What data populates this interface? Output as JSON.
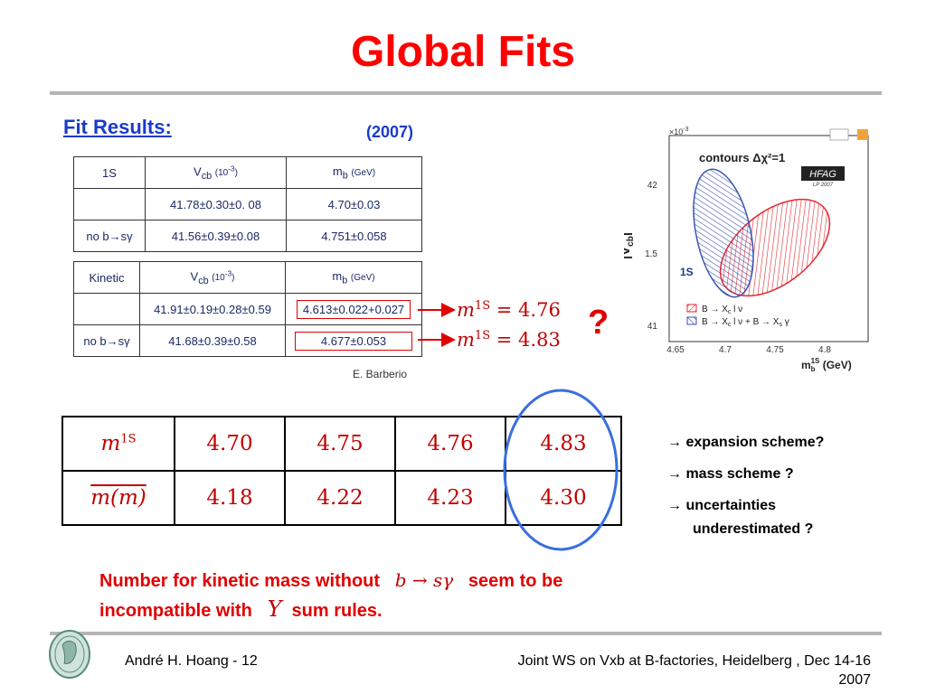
{
  "slide": {
    "title": "Global Fits",
    "subtitle": "Fit Results:",
    "year": "(2007)"
  },
  "table_1s": {
    "scheme": "1S",
    "vcb_header": "V",
    "vcb_sub": "cb",
    "vcb_unit": "(10",
    "vcb_exp": "-3",
    "vcb_close": ")",
    "mb_header": "m",
    "mb_sub": "b",
    "mb_unit": "(GeV)",
    "rows": [
      {
        "label": "",
        "vcb": "41.78±0.30±0. 08",
        "mb": "4.70±0.03"
      },
      {
        "label": "no b→sγ",
        "vcb": "41.56±0.39±0.08",
        "mb": "4.751±0.058"
      }
    ]
  },
  "table_kinetic": {
    "scheme": "Kinetic",
    "vcb_header": "V",
    "vcb_sub": "cb",
    "vcb_unit": "(10",
    "vcb_exp": "-3",
    "vcb_close": ")",
    "mb_header": "m",
    "mb_sub": "b",
    "mb_unit": "(GeV)",
    "rows": [
      {
        "label": "",
        "vcb": "41.91±0.19±0.28±0.59",
        "mb": "4.613±0.022+0.027"
      },
      {
        "label": "no b→sγ",
        "vcb": "41.68±0.39±0.58",
        "mb": "4.677±0.053"
      }
    ]
  },
  "credit": "E. Barberio",
  "arrow_labels": [
    {
      "lhs": "m",
      "sup": "1S",
      "rhs": " = 4.76"
    },
    {
      "lhs": "m",
      "sup": "1S",
      "rhs": " = 4.83"
    }
  ],
  "question_mark": "?",
  "mass_table": {
    "row1": {
      "label": "m",
      "label_sup": "1S",
      "values": [
        "4.70",
        "4.75",
        "4.76",
        "4.83"
      ]
    },
    "row2": {
      "label": "m(m)",
      "values": [
        "4.18",
        "4.22",
        "4.23",
        "4.30"
      ]
    }
  },
  "contour_plot": {
    "exp_label": "×10",
    "exp_sup": "-3",
    "title": "contours Δχ²=1",
    "badge": "HFAG",
    "badge_sub": "LP 2007",
    "scheme_label": "1S",
    "ylabel": "|V",
    "ylabel_sub": "cb",
    "ylabel_close": "|",
    "yticks": [
      "42",
      "1.5",
      "41"
    ],
    "xticks": [
      "4.65",
      "4.7",
      "4.75",
      "4.8"
    ],
    "xlabel": "m",
    "xlabel_sub": "b",
    "xlabel_sup": "1S",
    "xlabel_unit": " (GeV)",
    "legend": [
      "B → X",
      "c",
      " l ν",
      "B → X",
      "c",
      " l ν + B → X",
      "s",
      " γ"
    ],
    "colors": {
      "red": "#e8262e",
      "blue": "#3a56b0"
    }
  },
  "notes": [
    "→ expansion scheme?",
    "→ mass scheme ?",
    "→ uncertainties",
    "underestimated ?"
  ],
  "conclusion": {
    "part1": "Number for kinetic mass  without",
    "math1": "b → sγ",
    "part2": "seem to be",
    "part3": "incompatible with",
    "math2": "Υ",
    "part4": "sum rules."
  },
  "footer": {
    "author": "André H. Hoang  - 12",
    "event": "Joint WS on Vxb at B-factories, Heidelberg , Dec 14-16",
    "year": "2007"
  },
  "colors": {
    "title": "#ff0000",
    "heading_blue": "#1a3acc",
    "ellipse_blue": "#3a6fe0",
    "math_red": "#c00000"
  }
}
